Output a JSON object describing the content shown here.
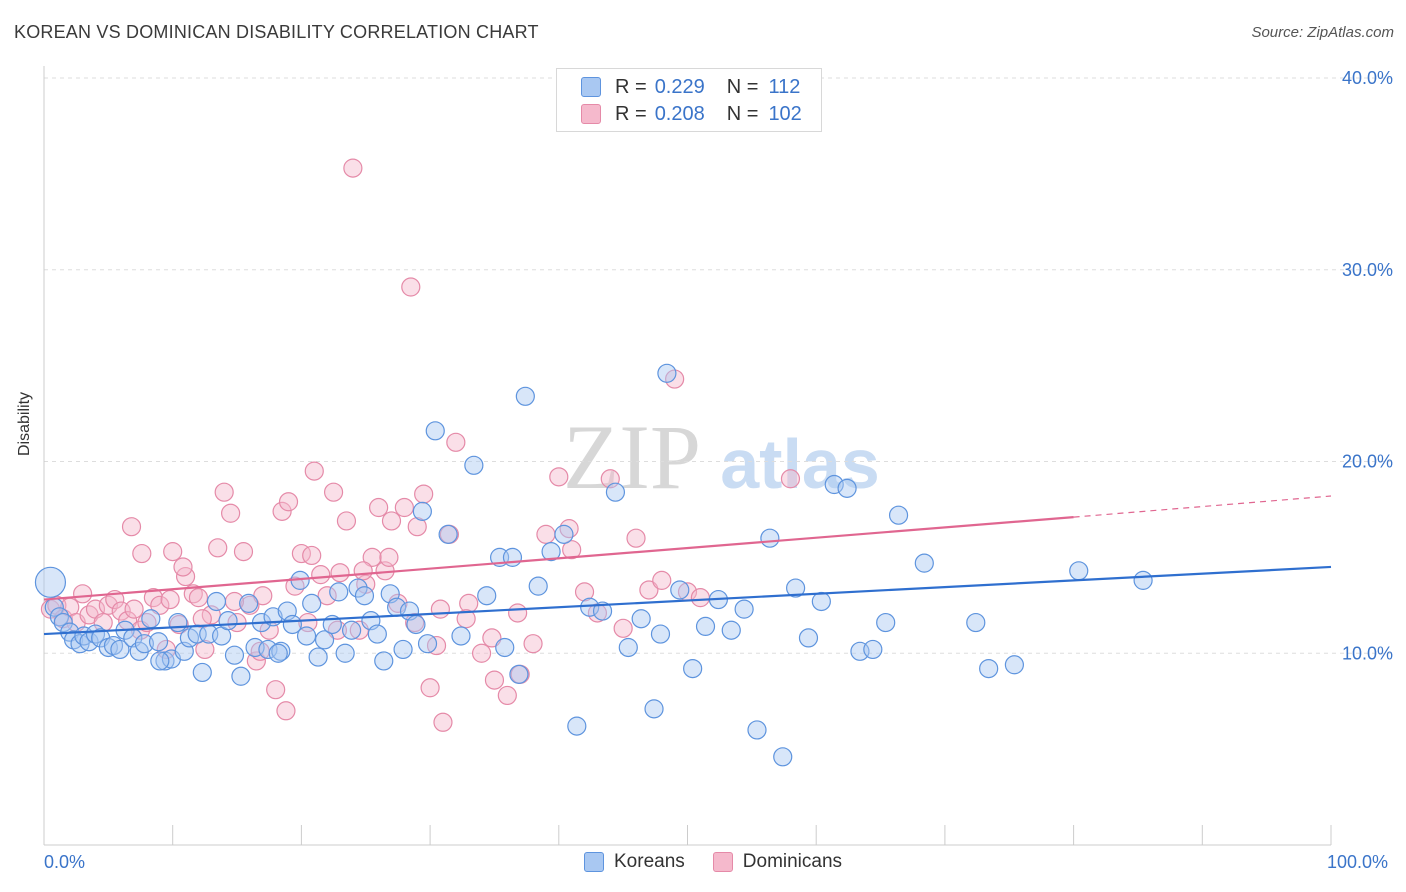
{
  "header": {
    "title": "KOREAN VS DOMINICAN DISABILITY CORRELATION CHART",
    "source": "Source: ZipAtlas.com"
  },
  "watermark": {
    "zip": "ZIP",
    "atlas": "atlas"
  },
  "colors": {
    "koreans_fill": "#a9c8f2",
    "koreans_stroke": "#5e94de",
    "koreans_line": "#2f6fcf",
    "dominicans_fill": "#f5b9cc",
    "dominicans_stroke": "#e58aa8",
    "dominicans_line": "#e06690",
    "axis_label": "#3a74c9",
    "grid": "#dddddd"
  },
  "legend": {
    "koreans": {
      "r_label": "R =",
      "r_value": "0.229",
      "n_label": "N =",
      "n_value": "112"
    },
    "dominicans": {
      "r_label": "R =",
      "r_value": "0.208",
      "n_label": "N =",
      "n_value": "102"
    }
  },
  "chart_data": {
    "type": "scatter",
    "title": "KOREAN VS DOMINICAN DISABILITY CORRELATION CHART",
    "xlabel": "",
    "ylabel": "Disability",
    "xlim": [
      0,
      100
    ],
    "ylim": [
      0,
      40
    ],
    "x_tick_labels": [
      "0.0%",
      "100.0%"
    ],
    "y_ticks": [
      10,
      20,
      30,
      40
    ],
    "y_tick_labels": [
      "10.0%",
      "20.0%",
      "30.0%",
      "40.0%"
    ],
    "grid": true,
    "legend_position": "top-center",
    "series": [
      {
        "name": "Koreans",
        "r": 0.229,
        "n": 112,
        "trend": {
          "x": [
            0,
            100
          ],
          "y": [
            11.0,
            14.5
          ]
        },
        "points": [
          [
            0.5,
            13.7
          ],
          [
            0.8,
            12.4
          ],
          [
            1.2,
            11.9
          ],
          [
            1.5,
            11.6
          ],
          [
            2.0,
            11.1
          ],
          [
            2.3,
            10.7
          ],
          [
            2.8,
            10.5
          ],
          [
            3.1,
            10.9
          ],
          [
            3.5,
            10.6
          ],
          [
            4.0,
            11.0
          ],
          [
            4.4,
            10.8
          ],
          [
            5.0,
            10.3
          ],
          [
            5.4,
            10.4
          ],
          [
            5.9,
            10.2
          ],
          [
            6.3,
            11.2
          ],
          [
            6.9,
            10.8
          ],
          [
            7.4,
            10.1
          ],
          [
            7.8,
            10.5
          ],
          [
            8.3,
            11.8
          ],
          [
            8.9,
            10.6
          ],
          [
            9.4,
            9.6
          ],
          [
            9.9,
            9.7
          ],
          [
            10.4,
            11.6
          ],
          [
            10.9,
            10.1
          ],
          [
            11.3,
            10.8
          ],
          [
            11.9,
            11.0
          ],
          [
            12.3,
            9.0
          ],
          [
            12.8,
            11.0
          ],
          [
            13.4,
            12.7
          ],
          [
            13.8,
            10.9
          ],
          [
            14.3,
            11.7
          ],
          [
            14.8,
            9.9
          ],
          [
            15.3,
            8.8
          ],
          [
            15.9,
            12.6
          ],
          [
            16.4,
            10.3
          ],
          [
            16.9,
            11.6
          ],
          [
            17.4,
            10.2
          ],
          [
            17.8,
            11.9
          ],
          [
            18.4,
            10.1
          ],
          [
            18.9,
            12.2
          ],
          [
            19.3,
            11.5
          ],
          [
            19.9,
            13.8
          ],
          [
            20.4,
            10.9
          ],
          [
            20.8,
            12.6
          ],
          [
            21.3,
            9.8
          ],
          [
            21.8,
            10.7
          ],
          [
            22.4,
            11.5
          ],
          [
            22.9,
            13.2
          ],
          [
            23.4,
            10.0
          ],
          [
            23.9,
            11.2
          ],
          [
            24.4,
            13.4
          ],
          [
            24.9,
            13.0
          ],
          [
            25.4,
            11.7
          ],
          [
            25.9,
            11.0
          ],
          [
            26.4,
            9.6
          ],
          [
            26.9,
            13.1
          ],
          [
            27.4,
            12.4
          ],
          [
            27.9,
            10.2
          ],
          [
            28.4,
            12.2
          ],
          [
            28.9,
            11.5
          ],
          [
            29.4,
            17.4
          ],
          [
            30.4,
            21.6
          ],
          [
            31.4,
            16.2
          ],
          [
            32.4,
            10.9
          ],
          [
            33.4,
            19.8
          ],
          [
            34.4,
            13.0
          ],
          [
            35.4,
            15.0
          ],
          [
            36.4,
            15.0
          ],
          [
            37.4,
            23.4
          ],
          [
            38.4,
            13.5
          ],
          [
            39.4,
            15.3
          ],
          [
            40.4,
            16.2
          ],
          [
            41.4,
            6.2
          ],
          [
            42.4,
            12.4
          ],
          [
            43.4,
            12.2
          ],
          [
            44.4,
            18.4
          ],
          [
            45.4,
            10.3
          ],
          [
            46.4,
            11.8
          ],
          [
            47.4,
            7.1
          ],
          [
            48.4,
            24.6
          ],
          [
            49.4,
            13.3
          ],
          [
            50.4,
            9.2
          ],
          [
            51.4,
            11.4
          ],
          [
            52.4,
            12.8
          ],
          [
            53.4,
            11.2
          ],
          [
            54.4,
            12.3
          ],
          [
            55.4,
            6.0
          ],
          [
            56.4,
            16.0
          ],
          [
            57.4,
            4.6
          ],
          [
            58.4,
            13.4
          ],
          [
            59.4,
            10.8
          ],
          [
            60.4,
            12.7
          ],
          [
            61.4,
            18.8
          ],
          [
            62.4,
            18.6
          ],
          [
            63.4,
            10.1
          ],
          [
            64.4,
            10.2
          ],
          [
            65.4,
            11.6
          ],
          [
            66.4,
            17.2
          ],
          [
            68.4,
            14.7
          ],
          [
            72.4,
            11.6
          ],
          [
            73.4,
            9.2
          ],
          [
            75.4,
            9.4
          ],
          [
            80.4,
            14.3
          ],
          [
            85.4,
            13.8
          ],
          [
            36.9,
            8.9
          ],
          [
            9.0,
            9.6
          ],
          [
            18.2,
            10.0
          ],
          [
            29.8,
            10.5
          ],
          [
            35.8,
            10.3
          ],
          [
            47.9,
            11.0
          ]
        ]
      },
      {
        "name": "Dominicans",
        "r": 0.208,
        "n": 102,
        "trend": {
          "x": [
            0,
            80
          ],
          "y": [
            12.8,
            17.1
          ],
          "dashed_extension": {
            "x": [
              80,
              100
            ],
            "y": [
              17.1,
              18.2
            ]
          }
        },
        "points": [
          [
            0.5,
            12.3
          ],
          [
            1.0,
            12.5
          ],
          [
            1.5,
            11.8
          ],
          [
            2.0,
            12.4
          ],
          [
            2.5,
            11.6
          ],
          [
            3.0,
            13.1
          ],
          [
            3.5,
            12.0
          ],
          [
            4.0,
            12.3
          ],
          [
            4.6,
            11.6
          ],
          [
            5.0,
            12.5
          ],
          [
            5.5,
            12.8
          ],
          [
            6.0,
            12.2
          ],
          [
            6.5,
            11.7
          ],
          [
            7.0,
            12.3
          ],
          [
            7.5,
            11.2
          ],
          [
            8.0,
            11.6
          ],
          [
            8.5,
            12.9
          ],
          [
            9.0,
            12.5
          ],
          [
            9.5,
            10.2
          ],
          [
            10.0,
            15.3
          ],
          [
            10.5,
            11.5
          ],
          [
            11.0,
            14.0
          ],
          [
            11.6,
            13.1
          ],
          [
            12.0,
            12.9
          ],
          [
            12.5,
            10.2
          ],
          [
            13.0,
            12.0
          ],
          [
            13.5,
            15.5
          ],
          [
            14.0,
            18.4
          ],
          [
            14.5,
            17.3
          ],
          [
            15.0,
            11.6
          ],
          [
            15.5,
            15.3
          ],
          [
            16.0,
            12.5
          ],
          [
            16.5,
            9.6
          ],
          [
            17.0,
            13.0
          ],
          [
            17.5,
            11.2
          ],
          [
            18.0,
            8.1
          ],
          [
            18.5,
            17.4
          ],
          [
            19.0,
            17.9
          ],
          [
            19.5,
            13.5
          ],
          [
            20.0,
            15.2
          ],
          [
            20.5,
            11.6
          ],
          [
            21.0,
            19.5
          ],
          [
            21.5,
            14.1
          ],
          [
            22.0,
            13.0
          ],
          [
            22.5,
            18.4
          ],
          [
            23.0,
            14.2
          ],
          [
            23.5,
            16.9
          ],
          [
            24.0,
            35.3
          ],
          [
            24.5,
            11.2
          ],
          [
            25.0,
            13.6
          ],
          [
            25.5,
            15.0
          ],
          [
            26.0,
            17.6
          ],
          [
            26.5,
            14.3
          ],
          [
            27.0,
            16.9
          ],
          [
            27.5,
            12.6
          ],
          [
            28.0,
            17.6
          ],
          [
            28.5,
            29.1
          ],
          [
            29.0,
            16.6
          ],
          [
            29.5,
            18.3
          ],
          [
            30.0,
            8.2
          ],
          [
            30.5,
            10.4
          ],
          [
            31.0,
            6.4
          ],
          [
            31.5,
            16.2
          ],
          [
            32.0,
            21.0
          ],
          [
            33.0,
            12.6
          ],
          [
            34.0,
            10.0
          ],
          [
            35.0,
            8.6
          ],
          [
            36.0,
            7.8
          ],
          [
            37.0,
            8.9
          ],
          [
            38.0,
            10.5
          ],
          [
            39.0,
            16.2
          ],
          [
            40.0,
            19.2
          ],
          [
            41.0,
            15.4
          ],
          [
            42.0,
            13.2
          ],
          [
            43.0,
            12.1
          ],
          [
            44.0,
            19.1
          ],
          [
            45.0,
            11.3
          ],
          [
            46.0,
            16.0
          ],
          [
            47.0,
            13.3
          ],
          [
            48.0,
            13.8
          ],
          [
            49.0,
            24.3
          ],
          [
            50.0,
            13.2
          ],
          [
            51.0,
            12.9
          ],
          [
            58.0,
            19.1
          ],
          [
            6.8,
            16.6
          ],
          [
            7.6,
            15.2
          ],
          [
            9.8,
            12.8
          ],
          [
            10.8,
            14.5
          ],
          [
            12.3,
            11.8
          ],
          [
            14.8,
            12.7
          ],
          [
            16.8,
            10.1
          ],
          [
            18.8,
            7.0
          ],
          [
            20.8,
            15.1
          ],
          [
            22.8,
            11.2
          ],
          [
            24.8,
            14.3
          ],
          [
            26.8,
            15.0
          ],
          [
            28.8,
            11.6
          ],
          [
            30.8,
            12.3
          ],
          [
            32.8,
            11.8
          ],
          [
            34.8,
            10.8
          ],
          [
            36.8,
            12.1
          ],
          [
            40.8,
            16.5
          ]
        ]
      }
    ]
  },
  "bottom_legend": {
    "koreans_label": "Koreans",
    "dominicans_label": "Dominicans"
  }
}
